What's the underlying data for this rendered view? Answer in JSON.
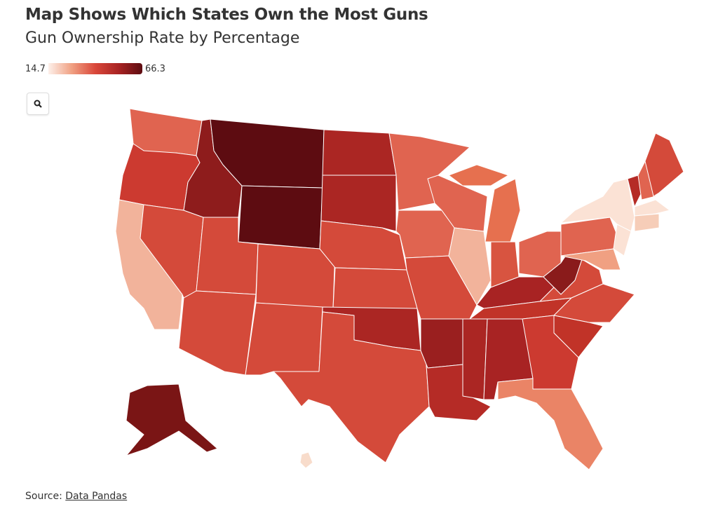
{
  "header": {
    "title": "Map Shows Which States Own the Most Guns",
    "subtitle": "Gun Ownership Rate by Percentage"
  },
  "legend": {
    "min": "14.7",
    "max": "66.3",
    "colors": [
      "#fdf0ea",
      "#f0a082",
      "#d9473a",
      "#a82323",
      "#5d0c11"
    ]
  },
  "controls": {
    "zoom_icon": "search-icon"
  },
  "footer": {
    "source_label": "Source:",
    "source_link": "Data Pandas"
  },
  "states": {
    "WA": "#e06450",
    "OR": "#cc3a30",
    "CA": "#f2b39b",
    "NV": "#d44a3a",
    "ID": "#8e1c1c",
    "MT": "#5d0c11",
    "WY": "#5d0c11",
    "UT": "#d44a3a",
    "AZ": "#d44a3a",
    "CO": "#d44a3a",
    "NM": "#d44a3a",
    "ND": "#ab2623",
    "SD": "#ab2623",
    "NE": "#d44a3a",
    "KS": "#d44a3a",
    "OK": "#ab2623",
    "TX": "#d44a3a",
    "MN": "#e06450",
    "IA": "#e06450",
    "MO": "#d44a3a",
    "AR": "#9a1f1f",
    "LA": "#b52b26",
    "MS": "#ab2623",
    "AL": "#a82323",
    "WI": "#e06450",
    "IL": "#f2b39b",
    "MI": "#e6704f",
    "IN": "#d85440",
    "OH": "#e06450",
    "KY": "#a82323",
    "TN": "#c13328",
    "WV": "#8a1b1b",
    "VA": "#d44a3a",
    "NC": "#d44a3a",
    "SC": "#c13328",
    "GA": "#cc3a30",
    "FL": "#ea8466",
    "PA": "#e06450",
    "NY": "#fbe2d5",
    "NJ": "#fbe2d5",
    "MD": "#f0a082",
    "VT": "#b52b26",
    "NH": "#e06450",
    "ME": "#d44a3a",
    "MA": "#fbe2d5",
    "CT": "#f6cdb8",
    "AK": "#7a1515",
    "HI": "#f8dccb"
  }
}
